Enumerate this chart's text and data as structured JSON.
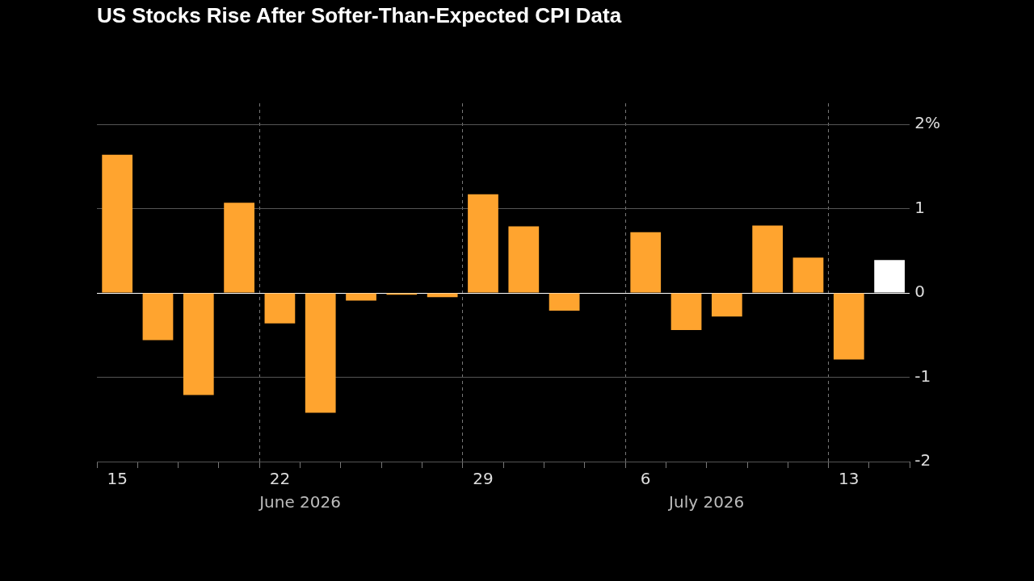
{
  "chart_data": {
    "type": "bar",
    "title": "US Stocks Rise After Softer-Than-Expected CPI Data",
    "categories": [
      "15",
      null,
      null,
      null,
      "22",
      null,
      null,
      null,
      null,
      "29",
      null,
      null,
      null,
      "6",
      null,
      null,
      null,
      null,
      "13",
      null
    ],
    "values": [
      1.64,
      -0.56,
      -1.21,
      1.07,
      -0.36,
      -1.42,
      -0.09,
      -0.02,
      -0.05,
      1.17,
      0.79,
      -0.21,
      0,
      0.72,
      -0.44,
      -0.28,
      0.8,
      0.42,
      -0.79,
      0.39
    ],
    "colors": [
      "#ffa42f",
      "#ffa42f",
      "#ffa42f",
      "#ffa42f",
      "#ffa42f",
      "#ffa42f",
      "#ffa42f",
      "#ffa42f",
      "#ffa42f",
      "#ffa42f",
      "#ffa42f",
      "#ffa42f",
      "#ffa42f",
      "#ffa42f",
      "#ffa42f",
      "#ffa42f",
      "#ffa42f",
      "#ffa42f",
      "#ffa42f",
      "#ffffff"
    ],
    "ylim": [
      -2,
      2.25
    ],
    "yticks": [
      {
        "value": 2,
        "label": "2%"
      },
      1,
      0,
      -1,
      -2
    ],
    "grid": true,
    "legend": false,
    "annotations": [
      "June 2026",
      "July 2026"
    ]
  }
}
